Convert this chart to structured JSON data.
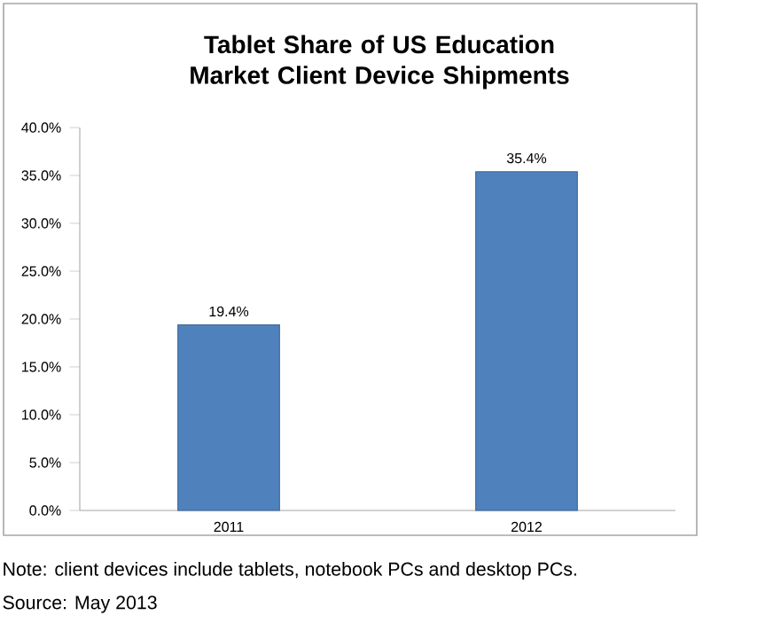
{
  "chart_data": {
    "type": "bar",
    "title": "Tablet Share of US Education Market Client Device Shipments",
    "categories": [
      "2011",
      "2012"
    ],
    "values": [
      19.4,
      35.4
    ],
    "value_labels": [
      "19.4%",
      "35.4%"
    ],
    "color": "#4f81bd",
    "ylim": [
      0,
      40
    ],
    "yticks": [
      {
        "value": 0,
        "label": "0.0%"
      },
      {
        "value": 5,
        "label": "5.0%"
      },
      {
        "value": 10,
        "label": "10.0%"
      },
      {
        "value": 15,
        "label": "15.0%"
      },
      {
        "value": 20,
        "label": "20.0%"
      },
      {
        "value": 25,
        "label": "25.0%"
      },
      {
        "value": 30,
        "label": "30.0%"
      },
      {
        "value": 35,
        "label": "35.0%"
      },
      {
        "value": 40,
        "label": "40.0%"
      }
    ],
    "grid": false,
    "annotations": [
      "Note: client devices include tablets, notebook PCs and desktop PCs.",
      "Source: May 2013"
    ]
  }
}
